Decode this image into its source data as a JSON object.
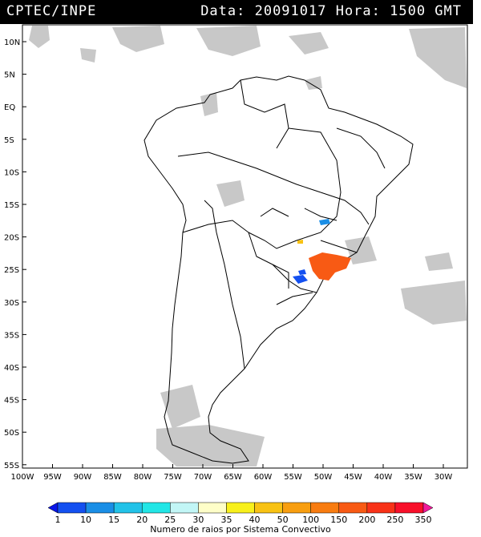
{
  "header": {
    "agency": "CPTEC/INPE",
    "datetime": "Data: 20091017 Hora: 1500 GMT"
  },
  "map": {
    "lat_labels": [
      "10N",
      "5N",
      "EQ",
      "5S",
      "10S",
      "15S",
      "20S",
      "25S",
      "30S",
      "35S",
      "40S",
      "45S",
      "50S",
      "55S"
    ],
    "lon_labels": [
      "100W",
      "95W",
      "90W",
      "85W",
      "80W",
      "75W",
      "70W",
      "65W",
      "60W",
      "55W",
      "50W",
      "45W",
      "40W",
      "35W",
      "30W"
    ],
    "lat_range": [
      11,
      -56
    ],
    "lon_range": [
      -100,
      -27
    ]
  },
  "colorbar": {
    "title": "Numero de raios por Sistema Convectivo",
    "labels": [
      "1",
      "10",
      "15",
      "20",
      "25",
      "30",
      "35",
      "40",
      "50",
      "100",
      "150",
      "200",
      "250",
      "350"
    ],
    "colors": [
      "#0a16e8",
      "#1450f0",
      "#1a8ee6",
      "#22c2e8",
      "#22e6e6",
      "#c2f6f6",
      "#fefec8",
      "#f8f01c",
      "#f8c214",
      "#f89e10",
      "#f87c10",
      "#f85a14",
      "#f83218",
      "#f8102a",
      "#f01a9a"
    ]
  }
}
